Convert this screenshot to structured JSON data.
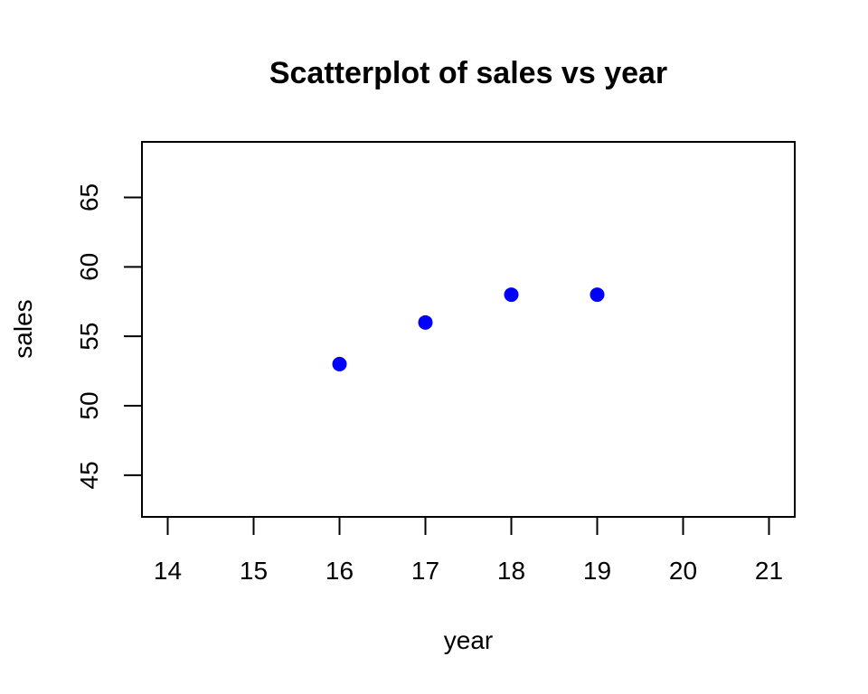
{
  "chart_data": {
    "type": "scatter",
    "title": "Scatterplot of sales vs year",
    "xlabel": "year",
    "ylabel": "sales",
    "xlim": [
      13.7,
      21.3
    ],
    "ylim": [
      42,
      69
    ],
    "xticks": [
      14,
      15,
      16,
      17,
      18,
      19,
      20,
      21
    ],
    "yticks": [
      45,
      50,
      55,
      60,
      65
    ],
    "series": [
      {
        "x": [
          16,
          17,
          18,
          19
        ],
        "y": [
          53,
          56,
          58,
          58
        ],
        "color": "#0000ff"
      }
    ],
    "grid": false,
    "legend": "none"
  }
}
